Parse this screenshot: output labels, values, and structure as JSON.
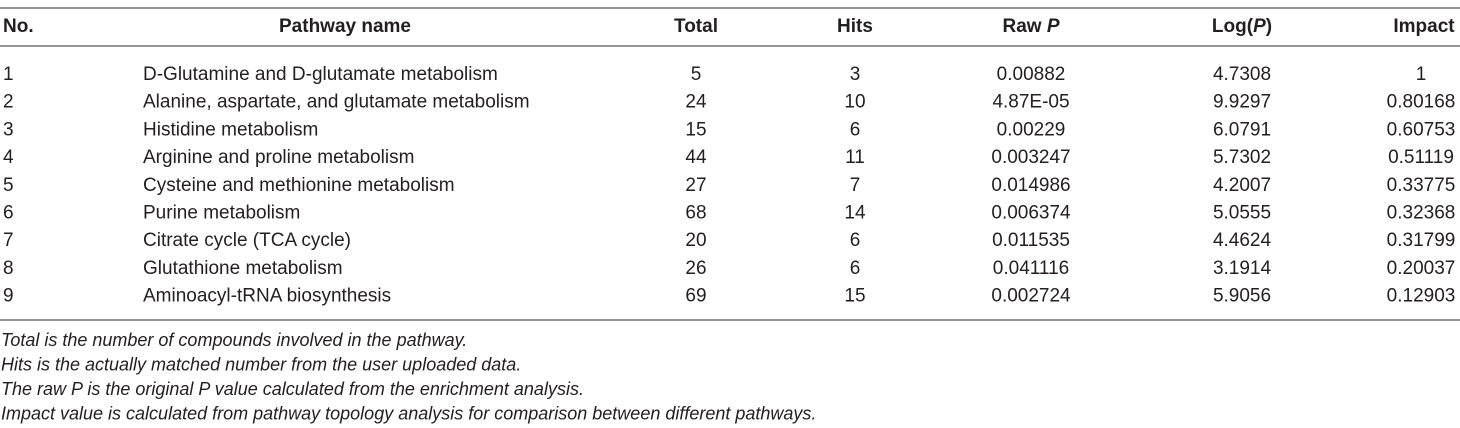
{
  "table": {
    "header": [
      [
        {
          "text": "No."
        }
      ],
      [
        {
          "text": "Pathway name"
        }
      ],
      [
        {
          "text": "Total"
        }
      ],
      [
        {
          "text": "Hits"
        }
      ],
      [
        {
          "text": "Raw "
        },
        {
          "text": "P",
          "italic": true
        }
      ],
      [
        {
          "text": "Log("
        },
        {
          "text": "P",
          "italic": true
        },
        {
          "text": ")"
        }
      ],
      [
        {
          "text": "Impact"
        }
      ]
    ],
    "rows": [
      [
        "1",
        "D-Glutamine and D-glutamate metabolism",
        "5",
        "3",
        "0.00882",
        "4.7308",
        "1"
      ],
      [
        "2",
        "Alanine, aspartate, and glutamate metabolism",
        "24",
        "10",
        "4.87E-05",
        "9.9297",
        "0.80168"
      ],
      [
        "3",
        "Histidine metabolism",
        "15",
        "6",
        "0.00229",
        "6.0791",
        "0.60753"
      ],
      [
        "4",
        "Arginine and proline metabolism",
        "44",
        "11",
        "0.003247",
        "5.7302",
        "0.51119"
      ],
      [
        "5",
        "Cysteine and methionine metabolism",
        "27",
        "7",
        "0.014986",
        "4.2007",
        "0.33775"
      ],
      [
        "6",
        "Purine metabolism",
        "68",
        "14",
        "0.006374",
        "5.0555",
        "0.32368"
      ],
      [
        "7",
        "Citrate cycle (TCA cycle)",
        "20",
        "6",
        "0.011535",
        "4.4624",
        "0.31799"
      ],
      [
        "8",
        "Glutathione metabolism",
        "26",
        "6",
        "0.041116",
        "3.1914",
        "0.20037"
      ],
      [
        "9",
        "Aminoacyl-tRNA biosynthesis",
        "69",
        "15",
        "0.002724",
        "5.9056",
        "0.12903"
      ]
    ],
    "notes": [
      "Total is the number of compounds involved in the pathway.",
      "Hits is the actually matched number from the user uploaded data.",
      "The raw P is the original P value calculated from the enrichment analysis.",
      "Impact value is calculated from pathway topology analysis for comparison between different pathways."
    ]
  }
}
